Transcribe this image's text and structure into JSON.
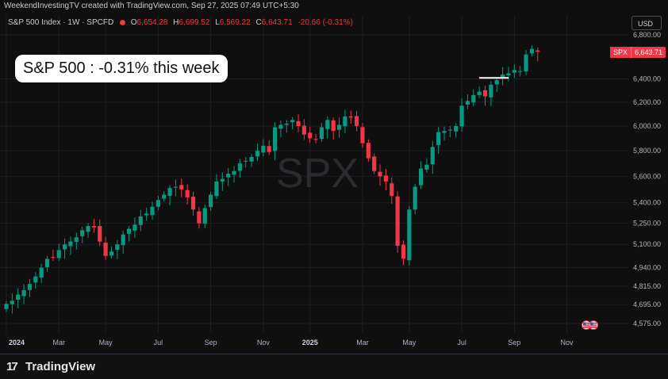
{
  "header": {
    "credit": "WeekendInvestingTV created with TradingView.com, Sep 27, 2025 07:49 UTC+5:30",
    "title": "S&P 500 Index · 1W · SPCFD",
    "ohlc": {
      "o_label": "O",
      "o": "6,654.28",
      "h_label": "H",
      "h": "6,699.52",
      "l_label": "L",
      "l": "6,569.22",
      "c_label": "C",
      "c": "6,643.71",
      "change": "-20.66 (-0.31%)"
    },
    "currency": "USD"
  },
  "annotation": "S&P 500 : -0.31% this week",
  "watermark": "SPX",
  "price_tag": {
    "symbol": "SPX",
    "price": "6,643.71"
  },
  "footer": {
    "brand": "TradingView",
    "brand_mark": "17"
  },
  "colors": {
    "up": "#089981",
    "down": "#f23645",
    "background": "#0f0f0f",
    "highlight": "#ffffff"
  },
  "chart_data": {
    "type": "candlestick",
    "title": "S&P 500 Index · 1W · SPCFD",
    "y_scale": "log",
    "ylim": [
      4490,
      6860
    ],
    "y_ticks": [
      4575,
      4695,
      4815,
      4940,
      5100,
      5250,
      5400,
      5600,
      5800,
      6000,
      6200,
      6400,
      6800
    ],
    "y_tick_labels": [
      "4,575.00",
      "4,695.00",
      "4,815.00",
      "4,940.00",
      "5,100.00",
      "5,250.00",
      "5,400.00",
      "5,600.00",
      "5,800.00",
      "6,000.00",
      "6,200.00",
      "6,400.00",
      "6,800.00"
    ],
    "x_labels": [
      "2024",
      "Mar",
      "May",
      "Jul",
      "Sep",
      "Nov",
      "2025",
      "Mar",
      "May",
      "Jul",
      "Sep",
      "Nov"
    ],
    "x_label_weeks": [
      0,
      9,
      17,
      26,
      35,
      44,
      52,
      61,
      69,
      78,
      87,
      96
    ],
    "grid": true,
    "close_prices": [
      4700,
      4720,
      4760,
      4790,
      4830,
      4880,
      4940,
      5000,
      5010,
      5060,
      5100,
      5120,
      5150,
      5200,
      5230,
      5220,
      5120,
      5020,
      5050,
      5100,
      5170,
      5210,
      5240,
      5300,
      5320,
      5370,
      5420,
      5460,
      5510,
      5520,
      5500,
      5440,
      5350,
      5250,
      5360,
      5460,
      5560,
      5580,
      5620,
      5640,
      5700,
      5720,
      5750,
      5800,
      5840,
      5790,
      5990,
      6010,
      6020,
      6050,
      6000,
      5930,
      5900,
      5890,
      5990,
      6050,
      5960,
      6010,
      6080,
      6070,
      6000,
      5860,
      5740,
      5640,
      5600,
      5560,
      5450,
      5090,
      5000,
      5350,
      5520,
      5660,
      5690,
      5830,
      5950,
      5960,
      5970,
      6000,
      6170,
      6210,
      6260,
      6290,
      6250,
      6350,
      6390,
      6440,
      6450,
      6480,
      6470,
      6620,
      6670,
      6643.71
    ],
    "highlight_segment": {
      "from_week": 81,
      "to_week": 86,
      "value": 6410
    }
  }
}
